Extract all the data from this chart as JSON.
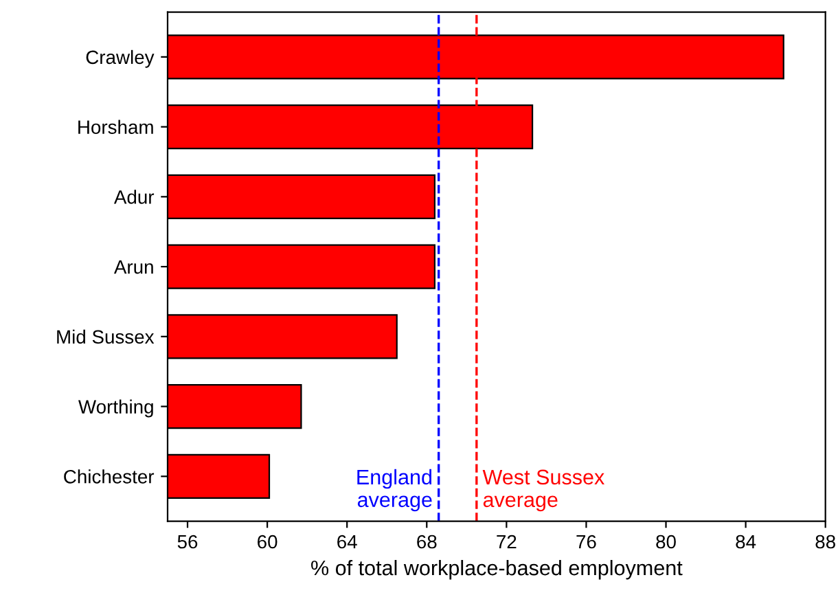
{
  "chart_data": {
    "type": "bar",
    "orientation": "horizontal",
    "categories": [
      "Crawley",
      "Horsham",
      "Adur",
      "Arun",
      "Mid Sussex",
      "Worthing",
      "Chichester"
    ],
    "values": [
      85.9,
      73.3,
      68.4,
      68.4,
      66.5,
      61.7,
      60.1
    ],
    "color": "#ff0000",
    "xlabel": "% of total workplace-based employment",
    "xlim": [
      55,
      88
    ],
    "xticks": [
      56,
      60,
      64,
      68,
      72,
      76,
      80,
      84,
      88
    ],
    "grid": false,
    "legend": false,
    "ref_lines": [
      {
        "axis": "x",
        "value": 68.6,
        "label": "England\naverage",
        "color": "#0000ff",
        "line_style": "dashed"
      },
      {
        "axis": "x",
        "value": 70.5,
        "label": "West Sussex\naverage",
        "color": "#ff0000",
        "line_style": "dashed"
      }
    ]
  }
}
